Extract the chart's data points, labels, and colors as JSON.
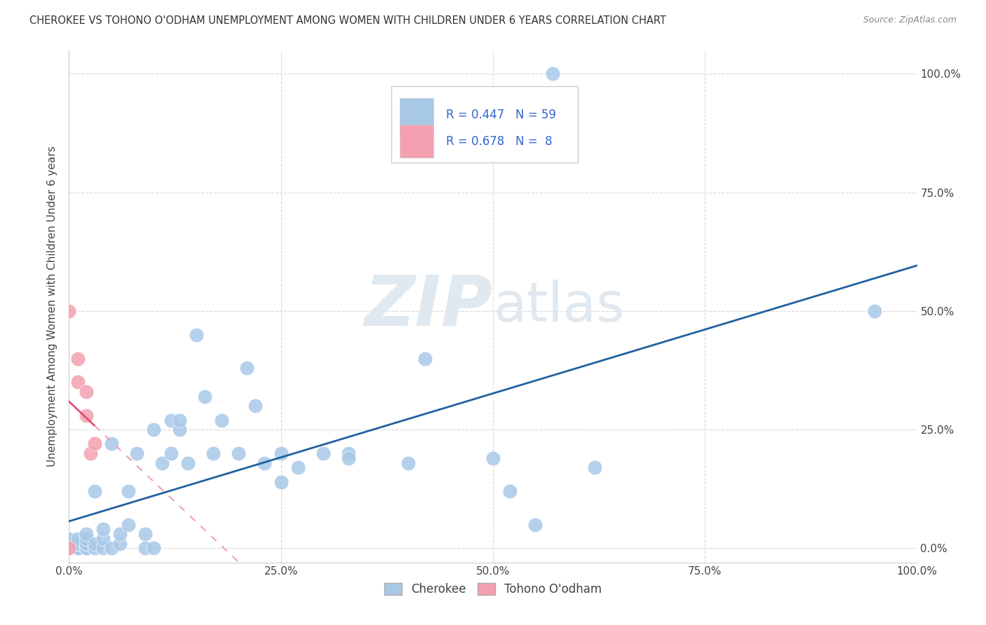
{
  "title": "CHEROKEE VS TOHONO O'ODHAM UNEMPLOYMENT AMONG WOMEN WITH CHILDREN UNDER 6 YEARS CORRELATION CHART",
  "source": "Source: ZipAtlas.com",
  "ylabel": "Unemployment Among Women with Children Under 6 years",
  "xlim": [
    0,
    1.0
  ],
  "ylim": [
    -0.03,
    1.05
  ],
  "xtick_labels": [
    "0.0%",
    "25.0%",
    "50.0%",
    "75.0%",
    "100.0%"
  ],
  "xtick_vals": [
    0.0,
    0.25,
    0.5,
    0.75,
    1.0
  ],
  "ytick_labels_right": [
    "100.0%",
    "75.0%",
    "50.0%",
    "25.0%",
    "0.0%"
  ],
  "ytick_vals": [
    1.0,
    0.75,
    0.5,
    0.25,
    0.0
  ],
  "r_cherokee": 0.447,
  "n_cherokee": 59,
  "r_tohono": 0.678,
  "n_tohono": 8,
  "cherokee_color": "#a8c8e8",
  "tohono_color": "#f4a0b0",
  "cherokee_line_color": "#2060a0",
  "tohono_line_color": "#e05070",
  "tohono_dash_color": "#f0a0b0",
  "legend_text_color": "#3366cc",
  "grid_color": "#d8d8d8",
  "watermark_color": "#e0e8f0",
  "cherokee_x": [
    0.0,
    0.0,
    0.0,
    0.01,
    0.01,
    0.01,
    0.01,
    0.01,
    0.02,
    0.02,
    0.02,
    0.02,
    0.02,
    0.02,
    0.03,
    0.03,
    0.03,
    0.04,
    0.04,
    0.04,
    0.05,
    0.05,
    0.06,
    0.06,
    0.07,
    0.07,
    0.08,
    0.09,
    0.09,
    0.1,
    0.1,
    0.11,
    0.12,
    0.12,
    0.13,
    0.13,
    0.14,
    0.15,
    0.16,
    0.17,
    0.18,
    0.2,
    0.21,
    0.22,
    0.23,
    0.25,
    0.25,
    0.27,
    0.3,
    0.33,
    0.33,
    0.4,
    0.42,
    0.5,
    0.52,
    0.55,
    0.57,
    0.62,
    0.95
  ],
  "cherokee_y": [
    0.0,
    0.01,
    0.02,
    0.0,
    0.0,
    0.01,
    0.01,
    0.02,
    0.0,
    0.0,
    0.01,
    0.01,
    0.02,
    0.03,
    0.0,
    0.01,
    0.12,
    0.0,
    0.02,
    0.04,
    0.0,
    0.22,
    0.01,
    0.03,
    0.05,
    0.12,
    0.2,
    0.0,
    0.03,
    0.0,
    0.25,
    0.18,
    0.2,
    0.27,
    0.25,
    0.27,
    0.18,
    0.45,
    0.32,
    0.2,
    0.27,
    0.2,
    0.38,
    0.3,
    0.18,
    0.14,
    0.2,
    0.17,
    0.2,
    0.2,
    0.19,
    0.18,
    0.4,
    0.19,
    0.12,
    0.05,
    1.0,
    0.17,
    0.5
  ],
  "tohono_x": [
    0.0,
    0.0,
    0.01,
    0.01,
    0.02,
    0.02,
    0.025,
    0.03
  ],
  "tohono_y": [
    0.0,
    0.5,
    0.35,
    0.4,
    0.28,
    0.33,
    0.2,
    0.22
  ]
}
